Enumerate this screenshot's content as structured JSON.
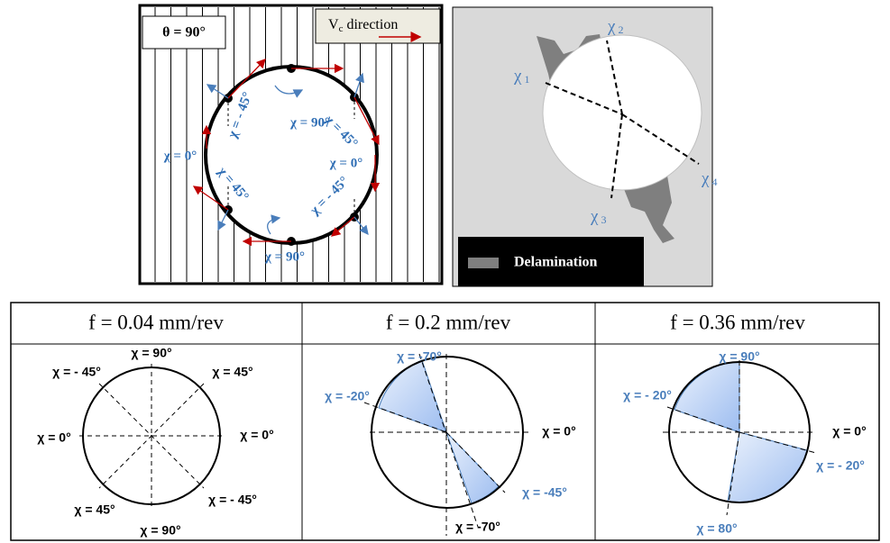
{
  "top_left": {
    "theta_label": "θ = 90°",
    "vc": {
      "symbol": "V",
      "subscript": "c",
      "text": "direction"
    },
    "chi_labels": [
      "χ = 90°",
      "χ = - 45°",
      "χ = 45°",
      "χ = 0°",
      "χ = 0°",
      "χ = 45°",
      "χ = - 45°",
      "χ = 90°"
    ]
  },
  "top_right": {
    "chi": [
      {
        "symbol": "χ",
        "subscript": "1"
      },
      {
        "symbol": "χ",
        "subscript": "2"
      },
      {
        "symbol": "χ",
        "subscript": "3"
      },
      {
        "symbol": "χ",
        "subscript": "4"
      }
    ],
    "legend": "Delamination"
  },
  "table": {
    "headers": [
      "f = 0.04 mm/rev",
      "f = 0.2 mm/rev",
      "f = 0.36 mm/rev"
    ],
    "panels": [
      {
        "labels": [
          "χ = 90°",
          "χ = - 45°",
          "χ = 45°",
          "χ = 0°",
          "χ = 0°",
          "χ = 45°",
          "χ = - 45°",
          "χ = 90°"
        ]
      },
      {
        "labels": [
          "χ = -70°",
          "χ = -20°",
          "χ = 0°",
          "χ = -45°",
          "χ = -70°"
        ]
      },
      {
        "labels": [
          "χ = 90°",
          "χ = - 20°",
          "χ = 0°",
          "χ = - 20°",
          "χ = 80°"
        ]
      }
    ]
  }
}
